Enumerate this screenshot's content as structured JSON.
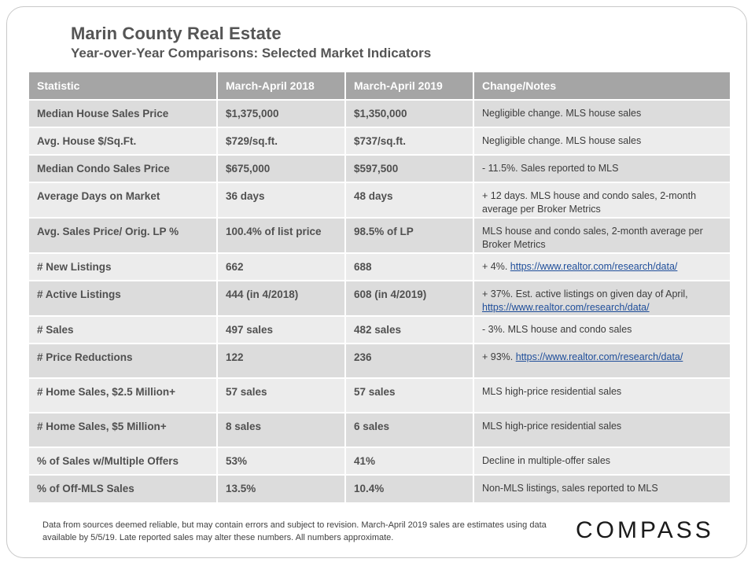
{
  "title": "Marin County Real Estate",
  "subtitle": "Year-over-Year  Comparisons:  Selected Market Indicators",
  "table": {
    "headers": [
      "Statistic",
      "March-April  2018",
      "March-April  2019",
      "Change/Notes"
    ],
    "rows": [
      {
        "stat": "Median House Sales Price",
        "y2018": "$1,375,000",
        "y2019": "$1,350,000",
        "note": "Negligible change. MLS house sales",
        "link": ""
      },
      {
        "stat": "Avg. House $/Sq.Ft.",
        "y2018": "$729/sq.ft.",
        "y2019": "$737/sq.ft.",
        "note": "Negligible change. MLS house sales",
        "link": ""
      },
      {
        "stat": "Median Condo Sales Price",
        "y2018": "$675,000",
        "y2019": "$597,500",
        "note": "- 11.5%.  Sales reported to MLS",
        "link": ""
      },
      {
        "stat": "Average Days on Market",
        "y2018": "36 days",
        "y2019": "48 days",
        "note": "+ 12 days. MLS house and condo sales, 2-month average per Broker Metrics",
        "link": ""
      },
      {
        "stat": "Avg. Sales Price/ Orig. LP %",
        "y2018": "100.4% of list price",
        "y2019": "98.5% of LP",
        "note": "MLS house and condo sales, 2-month average per Broker Metrics",
        "link": ""
      },
      {
        "stat": "# New Listings",
        "y2018": "662",
        "y2019": "688",
        "note": "+ 4%. ",
        "link": "https://www.realtor.com/research/data/"
      },
      {
        "stat": "# Active Listings",
        "y2018": "444 (in 4/2018)",
        "y2019": "608 (in 4/2019)",
        "note": "+ 37%. Est. active listings on given day of April, ",
        "link": "https://www.realtor.com/research/data/"
      },
      {
        "stat": "# Sales",
        "y2018": "497 sales",
        "y2019": "482 sales",
        "note": "- 3%. MLS house and condo sales",
        "link": ""
      },
      {
        "stat": "# Price Reductions",
        "y2018": "122",
        "y2019": "236",
        "note": "+ 93%. ",
        "link": "https://www.realtor.com/research/data/"
      },
      {
        "stat": "# Home Sales, $2.5 Million+",
        "y2018": "57 sales",
        "y2019": "57 sales",
        "note": "MLS high-price residential sales",
        "link": ""
      },
      {
        "stat": "# Home Sales, $5 Million+",
        "y2018": "8 sales",
        "y2019": "6 sales",
        "note": "MLS high-price residential sales",
        "link": ""
      },
      {
        "stat": "% of Sales w/Multiple Offers",
        "y2018": "53%",
        "y2019": "41%",
        "note": "Decline in multiple-offer sales",
        "link": ""
      },
      {
        "stat": "% of Off-MLS Sales",
        "y2018": "13.5%",
        "y2019": "10.4%",
        "note": "Non-MLS listings, sales reported to MLS",
        "link": ""
      }
    ]
  },
  "footer": "Data from sources deemed reliable, but may contain errors and subject to revision. March-April 2019 sales are estimates using data available  by 5/5/19. Late reported sales may alter these numbers. All numbers approximate.",
  "logo": "COMPASS"
}
